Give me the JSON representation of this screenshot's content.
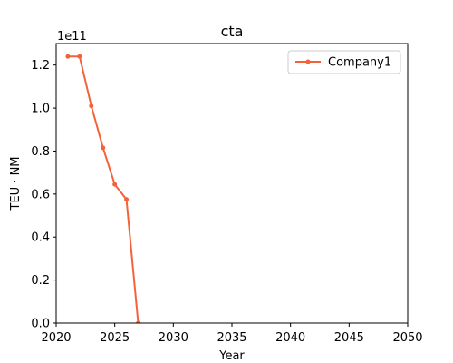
{
  "chart_data": {
    "type": "line",
    "title": "cta",
    "xlabel": "Year",
    "ylabel": "TEU · NM",
    "y_offset_text": "1e11",
    "y_scale_factor": 100000000000,
    "xlim": [
      2020,
      2050
    ],
    "ylim": [
      0,
      130000000000
    ],
    "x_ticks": [
      2020,
      2025,
      2030,
      2035,
      2040,
      2045,
      2050
    ],
    "x_tick_labels": [
      "2020",
      "2025",
      "2030",
      "2035",
      "2040",
      "2045",
      "2050"
    ],
    "y_ticks": [
      0,
      20000000000,
      40000000000,
      60000000000,
      80000000000,
      100000000000,
      120000000000
    ],
    "y_tick_labels": [
      "0.0",
      "0.2",
      "0.4",
      "0.6",
      "0.8",
      "1.0",
      "1.2"
    ],
    "grid": false,
    "legend_position": "top-right",
    "series": [
      {
        "name": "Company1",
        "color": "#f4623a",
        "x": [
          2021,
          2022,
          2023,
          2024,
          2025,
          2026,
          2027
        ],
        "y": [
          124000000000,
          124000000000,
          101000000000,
          81500000000,
          64500000000,
          57500000000,
          0
        ]
      }
    ]
  }
}
